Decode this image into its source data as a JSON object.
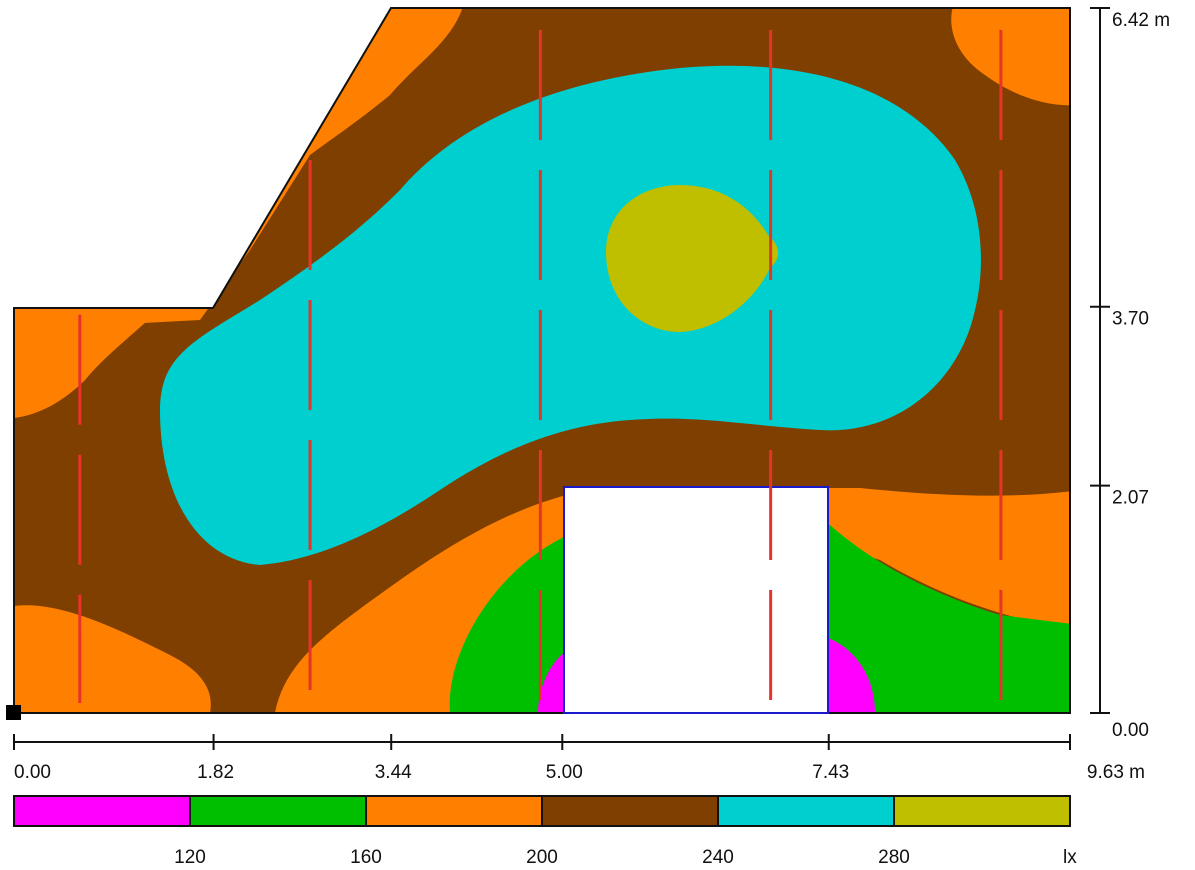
{
  "chart_data": {
    "type": "heatmap",
    "x_axis": {
      "ticks": [
        0.0,
        1.82,
        3.44,
        5.0,
        7.43,
        9.63
      ],
      "tick_labels": [
        "0.00",
        "1.82",
        "3.44",
        "5.00",
        "7.43",
        "9.63 m"
      ],
      "range": [
        0,
        9.63
      ]
    },
    "y_axis": {
      "ticks": [
        0.0,
        2.07,
        3.7,
        6.42
      ],
      "tick_labels": [
        "0.00",
        "2.07",
        "3.70",
        "6.42 m"
      ],
      "range": [
        0,
        6.42
      ]
    },
    "room_outline": [
      [
        0,
        0
      ],
      [
        0,
        3.7
      ],
      [
        1.82,
        3.7
      ],
      [
        3.44,
        6.42
      ],
      [
        9.63,
        6.42
      ],
      [
        9.63,
        0
      ]
    ],
    "obstacle": {
      "x": [
        5.0,
        7.43
      ],
      "y": [
        0,
        2.07
      ]
    },
    "luminaire_rows_x": [
      0.6,
      2.7,
      4.8,
      6.9,
      9.0
    ],
    "legend": {
      "levels": [
        {
          "label": "",
          "color": "#ff00ff"
        },
        {
          "label": "120",
          "color": "#00bf00"
        },
        {
          "label": "160",
          "color": "#ff8000"
        },
        {
          "label": "200",
          "color": "#7f3f00"
        },
        {
          "label": "240",
          "color": "#00cfcf"
        },
        {
          "label": "280",
          "color": "#bfbf00"
        }
      ],
      "unit": "lx"
    }
  },
  "colors": {
    "lum_line": "#e8332a",
    "obstacle_border": "#1a1acc",
    "ink": "#111111"
  }
}
